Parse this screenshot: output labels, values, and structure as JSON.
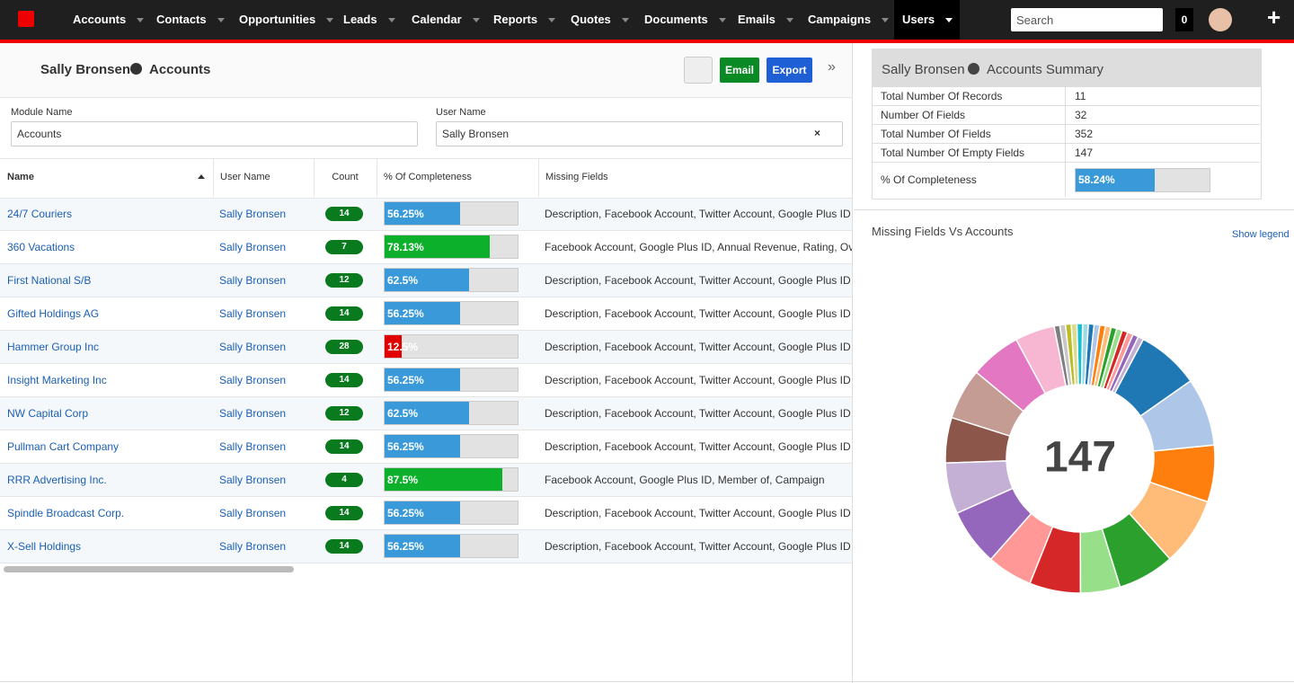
{
  "nav": {
    "items": [
      {
        "label": "Accounts"
      },
      {
        "label": "Contacts"
      },
      {
        "label": "Opportunities"
      },
      {
        "label": "Leads"
      },
      {
        "label": "Calendar"
      },
      {
        "label": "Reports"
      },
      {
        "label": "Quotes"
      },
      {
        "label": "Documents"
      },
      {
        "label": "Emails"
      },
      {
        "label": "Campaigns"
      },
      {
        "label": "Users",
        "active": true
      }
    ],
    "search_placeholder": "Search",
    "notification_count": "0"
  },
  "header": {
    "user": "Sally Bronsen",
    "module": "Accounts",
    "buttons": [
      "Email",
      "Export"
    ]
  },
  "filters": [
    {
      "label": "Module Name",
      "value": "Accounts"
    },
    {
      "label": "User Name",
      "value": "Sally Bronsen"
    }
  ],
  "table": {
    "columns": [
      "Name",
      "User Name",
      "Count",
      "% Of Completeness",
      "Missing Fields"
    ],
    "rows": [
      {
        "name": "24/7 Couriers",
        "user": "Sally Bronsen",
        "count": 14,
        "completeness": 56.25,
        "completeness_label": "56.25%",
        "color": "#3a9ad9",
        "missing": "Description, Facebook Account, Twitter Account, Google Plus ID"
      },
      {
        "name": "360 Vacations",
        "user": "Sally Bronsen",
        "count": 7,
        "completeness": 78.13,
        "completeness_label": "78.13%",
        "color": "#0db02b",
        "missing": "Facebook Account, Google Plus ID, Annual Revenue, Rating, Ov"
      },
      {
        "name": "First National S/B",
        "user": "Sally Bronsen",
        "count": 12,
        "completeness": 62.5,
        "completeness_label": "62.5%",
        "color": "#3a9ad9",
        "missing": "Description, Facebook Account, Twitter Account, Google Plus ID"
      },
      {
        "name": "Gifted Holdings AG",
        "user": "Sally Bronsen",
        "count": 14,
        "completeness": 56.25,
        "completeness_label": "56.25%",
        "color": "#3a9ad9",
        "missing": "Description, Facebook Account, Twitter Account, Google Plus ID"
      },
      {
        "name": "Hammer Group Inc",
        "user": "Sally Bronsen",
        "count": 28,
        "completeness": 12.5,
        "completeness_label": "12.5%",
        "color": "#e00000",
        "missing": "Description, Facebook Account, Twitter Account, Google Plus ID"
      },
      {
        "name": "Insight Marketing Inc",
        "user": "Sally Bronsen",
        "count": 14,
        "completeness": 56.25,
        "completeness_label": "56.25%",
        "color": "#3a9ad9",
        "missing": "Description, Facebook Account, Twitter Account, Google Plus ID"
      },
      {
        "name": "NW Capital Corp",
        "user": "Sally Bronsen",
        "count": 12,
        "completeness": 62.5,
        "completeness_label": "62.5%",
        "color": "#3a9ad9",
        "missing": "Description, Facebook Account, Twitter Account, Google Plus ID"
      },
      {
        "name": "Pullman Cart Company",
        "user": "Sally Bronsen",
        "count": 14,
        "completeness": 56.25,
        "completeness_label": "56.25%",
        "color": "#3a9ad9",
        "missing": "Description, Facebook Account, Twitter Account, Google Plus ID"
      },
      {
        "name": "RRR Advertising Inc.",
        "user": "Sally Bronsen",
        "count": 4,
        "completeness": 87.5,
        "completeness_label": "87.5%",
        "color": "#0db02b",
        "missing": "Facebook Account, Google Plus ID, Member of, Campaign"
      },
      {
        "name": "Spindle Broadcast Corp.",
        "user": "Sally Bronsen",
        "count": 14,
        "completeness": 56.25,
        "completeness_label": "56.25%",
        "color": "#3a9ad9",
        "missing": "Description, Facebook Account, Twitter Account, Google Plus ID"
      },
      {
        "name": "X-Sell Holdings",
        "user": "Sally Bronsen",
        "count": 14,
        "completeness": 56.25,
        "completeness_label": "56.25%",
        "color": "#3a9ad9",
        "missing": "Description, Facebook Account, Twitter Account, Google Plus ID"
      }
    ]
  },
  "summary": {
    "user": "Sally Bronsen",
    "title": "Accounts Summary",
    "rows": [
      {
        "label": "Total Number Of Records",
        "value": "11"
      },
      {
        "label": "Number Of Fields",
        "value": "32"
      },
      {
        "label": "Total Number Of Fields",
        "value": "352"
      },
      {
        "label": "Total Number Of Empty Fields",
        "value": "147"
      }
    ],
    "completeness": {
      "label": "% Of Completeness",
      "value": 58.24,
      "value_label": "58.24%"
    }
  },
  "chart": {
    "type": "donut",
    "title": "Missing Fields Vs Accounts",
    "legend_button": "Show legend",
    "values": [
      11,
      12,
      10,
      12,
      10,
      7,
      9,
      8,
      10,
      9,
      8,
      9,
      9,
      7,
      1,
      1,
      1,
      1,
      1,
      1,
      1,
      1,
      1,
      1,
      1,
      1,
      1,
      1,
      1,
      1
    ],
    "colors": [
      "#1f77b4",
      "#aec7e8",
      "#ff7f0e",
      "#ffbb78",
      "#2ca02c",
      "#98df8a",
      "#d62728",
      "#ff9896",
      "#9467bd",
      "#c5b0d5",
      "#8c564b",
      "#c49c94",
      "#e377c2",
      "#f7b6d2",
      "#7f7f7f",
      "#c7c7c7",
      "#bcbd22",
      "#dbdb8d",
      "#17becf",
      "#9edae5",
      "#1f77b4",
      "#aec7e8",
      "#ff7f0e",
      "#ffbb78",
      "#2ca02c",
      "#98df8a",
      "#d62728",
      "#ff9896",
      "#9467bd",
      "#c5b0d5"
    ]
  }
}
